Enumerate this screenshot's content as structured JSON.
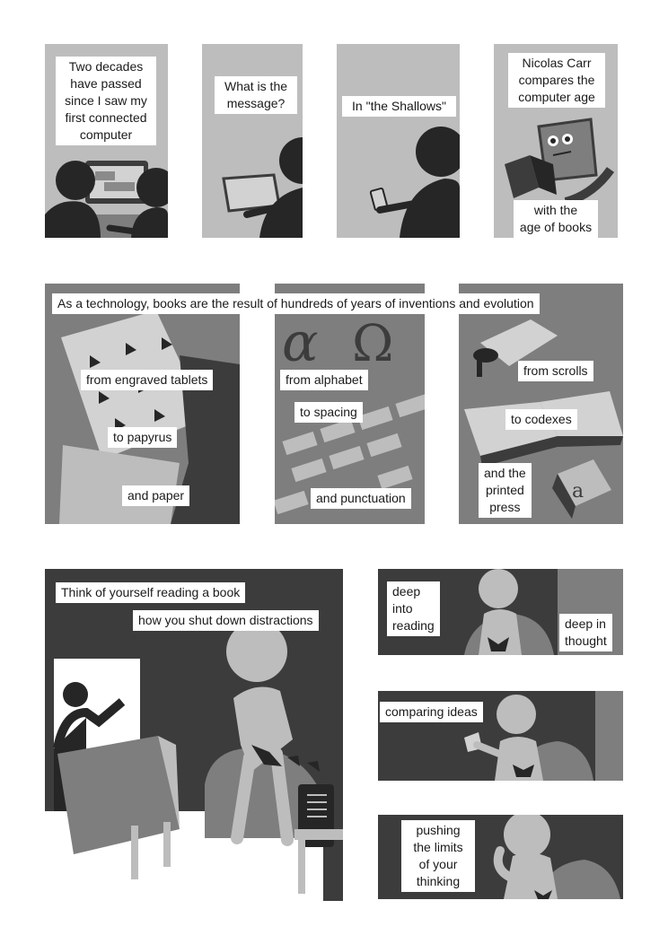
{
  "row1": {
    "p1_caption": "Two decades\nhave passed\nsince I saw my\nfirst connected\ncomputer",
    "p2_caption": "What is the\nmessage?",
    "p3_caption": "In \"the Shallows\"",
    "p4_caption_top": "Nicolas Carr\ncompares the\ncomputer age",
    "p4_caption_bottom": "with the\nage of books"
  },
  "row2": {
    "banner": "As a technology, books are the result of hundreds of years of inventions and evolution",
    "tablets": "from engraved tablets",
    "papyrus": "to papyrus",
    "paper": "and paper",
    "alphabet": "from alphabet",
    "spacing": "to spacing",
    "punctuation": "and punctuation",
    "scrolls": "from scrolls",
    "codexes": "to codexes",
    "printed_press": "and the\nprinted\npress"
  },
  "row3": {
    "reading_book": "Think of yourself reading a book",
    "shut_down": "how you shut down distractions",
    "deep_reading": "deep\ninto\nreading",
    "deep_thought": "deep in\nthought",
    "comparing": "comparing ideas",
    "pushing": "pushing\nthe limits\nof your\nthinking"
  },
  "colors": {
    "dark": "#3c3c3c",
    "mid": "#7e7e7e",
    "light": "#bdbdbd",
    "lighter": "#d2d2d2",
    "figure": "#262626"
  }
}
